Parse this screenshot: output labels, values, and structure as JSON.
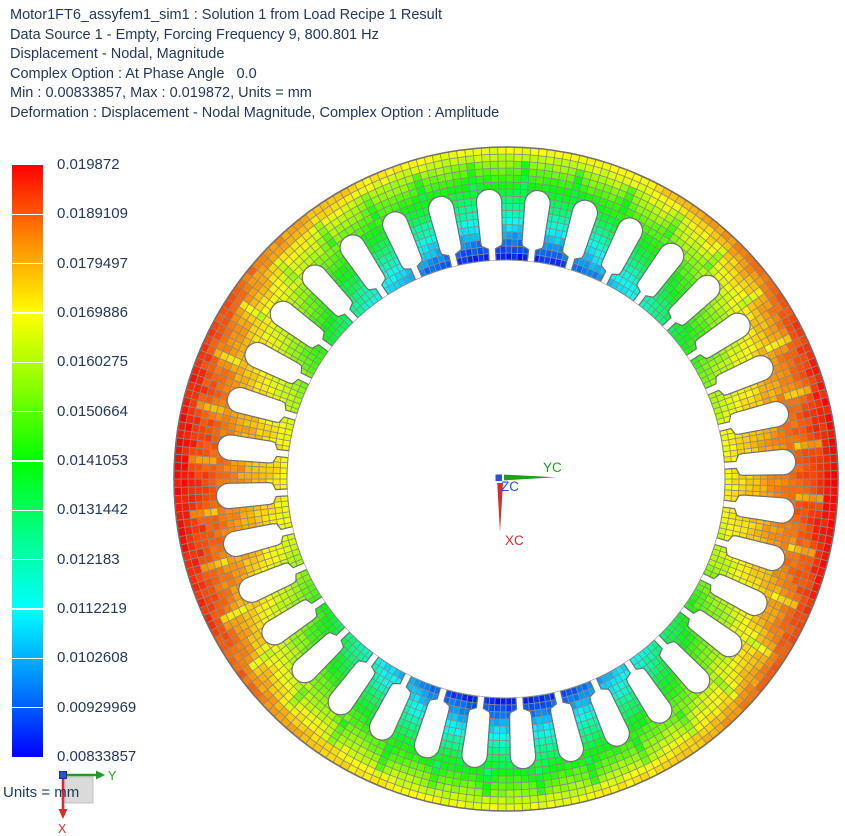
{
  "header": {
    "lines": [
      "Motor1FT6_assyfem1_sim1 : Solution 1 from Load Recipe 1 Result",
      "Data Source 1 - Empty, Forcing Frequency 9, 800.801 Hz",
      "Displacement - Nodal, Magnitude",
      "Complex Option : At Phase Angle   0.0",
      "Min : 0.00833857, Max : 0.019872, Units = mm",
      "Deformation : Displacement - Nodal Magnitude, Complex Option : Amplitude"
    ]
  },
  "legend": {
    "labels": [
      "0.019872",
      "0.0189109",
      "0.0179497",
      "0.0169886",
      "0.0160275",
      "0.0150664",
      "0.0141053",
      "0.0131442",
      "0.012183",
      "0.0112219",
      "0.0102608",
      "0.00929969",
      "0.00833857"
    ],
    "gradient_stops": [
      "#ff0000 0%",
      "#ff8800 12.5%",
      "#ffff00 25%",
      "#88ff00 37.5%",
      "#00ff00 50%",
      "#00ff88 62.5%",
      "#00ffff 75%",
      "#0088ff 87.5%",
      "#0000ff 100%"
    ]
  },
  "units_label": "Units = mm",
  "triad_center": {
    "x_label": "XC",
    "y_label": "YC",
    "z_label": "ZC"
  },
  "triad_corner": {
    "x_label": "X",
    "y_label": "Y"
  },
  "colors": {
    "text": "#22395c",
    "axis_x": "#cf3030",
    "axis_y": "#1e9e1e",
    "axis_z": "#2a52cc",
    "mesh_line": "#8a8a8a",
    "outline": "#6f6f6f"
  },
  "stator": {
    "slots": 36,
    "result_min": 0.00833857,
    "result_max": 0.019872,
    "result_type": "Displacement - Nodal, Magnitude"
  }
}
